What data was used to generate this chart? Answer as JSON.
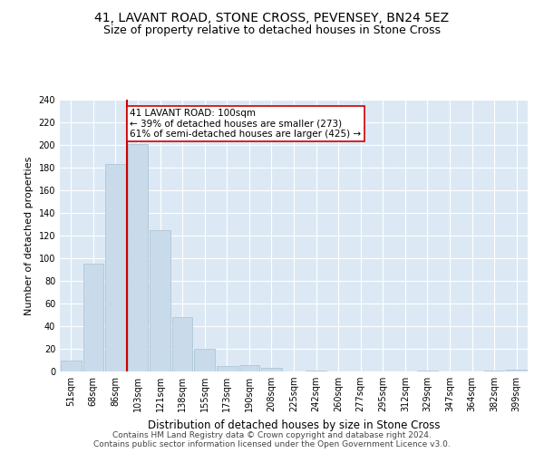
{
  "title": "41, LAVANT ROAD, STONE CROSS, PEVENSEY, BN24 5EZ",
  "subtitle": "Size of property relative to detached houses in Stone Cross",
  "xlabel": "Distribution of detached houses by size in Stone Cross",
  "ylabel": "Number of detached properties",
  "categories": [
    "51sqm",
    "68sqm",
    "86sqm",
    "103sqm",
    "121sqm",
    "138sqm",
    "155sqm",
    "173sqm",
    "190sqm",
    "208sqm",
    "225sqm",
    "242sqm",
    "260sqm",
    "277sqm",
    "295sqm",
    "312sqm",
    "329sqm",
    "347sqm",
    "364sqm",
    "382sqm",
    "399sqm"
  ],
  "values": [
    10,
    95,
    183,
    201,
    125,
    48,
    20,
    5,
    6,
    3,
    0,
    1,
    0,
    0,
    0,
    0,
    1,
    0,
    0,
    1,
    2
  ],
  "bar_color": "#c9daea",
  "bar_edgecolor": "#aec6d8",
  "vline_x_index": 3,
  "vline_color": "#cc0000",
  "annotation_text": "41 LAVANT ROAD: 100sqm\n← 39% of detached houses are smaller (273)\n61% of semi-detached houses are larger (425) →",
  "annotation_box_edgecolor": "#cc0000",
  "annotation_box_facecolor": "#ffffff",
  "ylim": [
    0,
    240
  ],
  "yticks": [
    0,
    20,
    40,
    60,
    80,
    100,
    120,
    140,
    160,
    180,
    200,
    220,
    240
  ],
  "background_color": "#dce9f5",
  "footer_line1": "Contains HM Land Registry data © Crown copyright and database right 2024.",
  "footer_line2": "Contains public sector information licensed under the Open Government Licence v3.0.",
  "title_fontsize": 10,
  "subtitle_fontsize": 9,
  "xlabel_fontsize": 8.5,
  "ylabel_fontsize": 8,
  "tick_fontsize": 7,
  "footer_fontsize": 6.5,
  "annotation_fontsize": 7.5
}
